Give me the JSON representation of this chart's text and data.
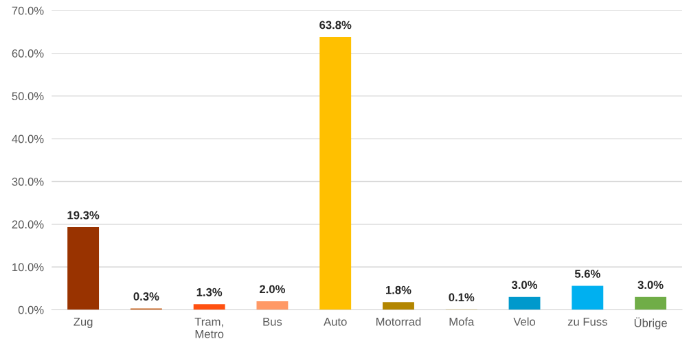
{
  "chart_data": {
    "type": "bar",
    "categories": [
      "Zug",
      null,
      "Tram,\nMetro",
      "Bus",
      "Auto",
      "Motorrad",
      "Mofa",
      "Velo",
      "zu Fuss",
      "Übrige"
    ],
    "values": [
      19.3,
      0.3,
      1.3,
      2.0,
      63.8,
      1.8,
      0.1,
      3.0,
      5.6,
      3.0
    ],
    "colors": [
      "#993300",
      "#c55a11",
      "#ff5010",
      "#ff9966",
      "#ffc000",
      "#b38600",
      "#c9a227",
      "#0099cc",
      "#00b0f0",
      "#70ad47"
    ],
    "value_labels": [
      "19.3%",
      "0.3%",
      "1.3%",
      "2.0%",
      "63.8%",
      "1.8%",
      "0.1%",
      "3.0%",
      "5.6%",
      "3.0%"
    ],
    "ylim": [
      0,
      70
    ],
    "yticks": [
      {
        "value": 0,
        "label": "0.0%"
      },
      {
        "value": 10,
        "label": "10.0%"
      },
      {
        "value": 20,
        "label": "20.0%"
      },
      {
        "value": 30,
        "label": "30.0%"
      },
      {
        "value": 40,
        "label": "40.0%"
      },
      {
        "value": 50,
        "label": "50.0%"
      },
      {
        "value": 60,
        "label": "60.0%"
      },
      {
        "value": 70,
        "label": "70.0%"
      }
    ],
    "grid": "y"
  }
}
